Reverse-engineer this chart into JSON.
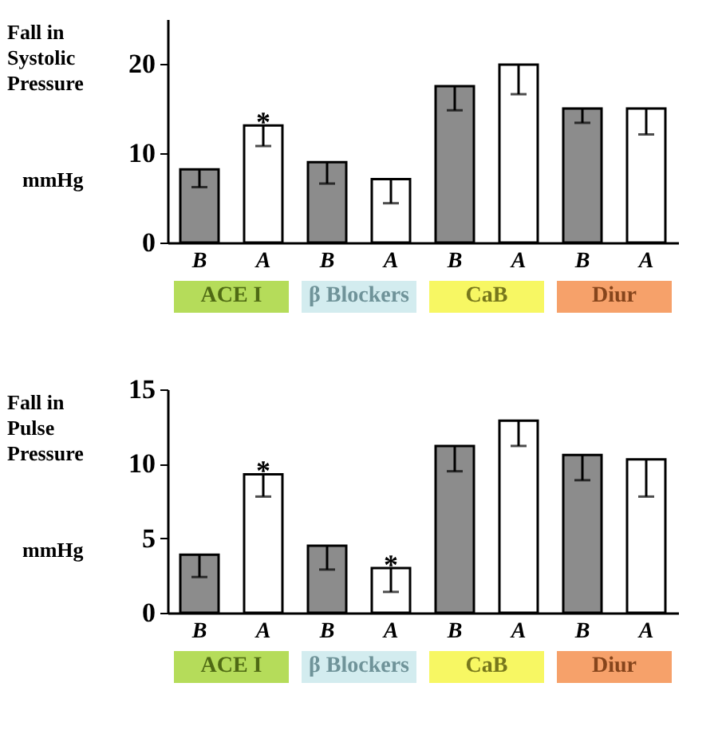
{
  "chart_data": [
    {
      "type": "bar",
      "ylabel": "Fall in Systolic Pressure",
      "categories": [
        "B",
        "A",
        "B",
        "A",
        "B",
        "A",
        "B",
        "A"
      ],
      "values": [
        8.2,
        13.1,
        9.0,
        7.1,
        17.5,
        19.9,
        15.0,
        15.0
      ],
      "errors": [
        [
          6.2,
          8.2
        ],
        [
          10.8,
          13.1
        ],
        [
          6.6,
          9.0
        ],
        [
          4.4,
          7.1
        ],
        [
          14.8,
          17.5
        ],
        [
          16.6,
          19.9
        ],
        [
          13.4,
          15.0
        ],
        [
          12.1,
          15.0
        ]
      ],
      "colors": [
        "#8c8c8c",
        "#ffffff",
        "#8c8c8c",
        "#ffffff",
        "#8c8c8c",
        "#ffffff",
        "#8c8c8c",
        "#ffffff"
      ],
      "ylim": [
        0,
        25
      ],
      "yticks": [
        0,
        10,
        20
      ],
      "grid": false,
      "annotations": [
        "mmHg",
        "ACE I",
        "β Blockers",
        "CaB",
        "Diur",
        {
          "text": "*",
          "y": 13.1
        }
      ]
    },
    {
      "type": "bar",
      "ylabel": "Fall in Pulse Pressure",
      "categories": [
        "B",
        "A",
        "B",
        "A",
        "B",
        "A",
        "B",
        "A"
      ],
      "values": [
        3.9,
        9.3,
        4.5,
        3.0,
        11.2,
        12.9,
        10.6,
        10.3
      ],
      "errors": [
        [
          2.4,
          3.9
        ],
        [
          7.8,
          9.3
        ],
        [
          2.9,
          4.5
        ],
        [
          1.4,
          3.0
        ],
        [
          9.5,
          11.2
        ],
        [
          11.2,
          12.9
        ],
        [
          8.9,
          10.6
        ],
        [
          7.8,
          10.3
        ]
      ],
      "colors": [
        "#8c8c8c",
        "#ffffff",
        "#8c8c8c",
        "#ffffff",
        "#8c8c8c",
        "#ffffff",
        "#8c8c8c",
        "#ffffff"
      ],
      "ylim": [
        0,
        15
      ],
      "yticks": [
        0,
        5,
        10,
        15
      ],
      "grid": false,
      "annotations": [
        "mmHg",
        "ACE I",
        "β Blockers",
        "CaB",
        "Diur",
        {
          "text": "*",
          "y": 9.3
        },
        {
          "text": "*",
          "y": 3.0
        }
      ]
    }
  ]
}
